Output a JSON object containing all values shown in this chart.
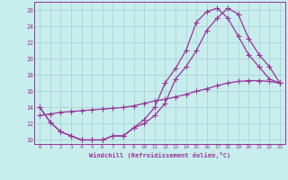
{
  "xlabel": "Windchill (Refroidissement éolien,°C)",
  "xlim": [
    -0.5,
    23.5
  ],
  "ylim": [
    9.5,
    27.0
  ],
  "xticks": [
    0,
    1,
    2,
    3,
    4,
    5,
    6,
    7,
    8,
    9,
    10,
    11,
    12,
    13,
    14,
    15,
    16,
    17,
    18,
    19,
    20,
    21,
    22,
    23
  ],
  "yticks": [
    10,
    12,
    14,
    16,
    18,
    20,
    22,
    24,
    26
  ],
  "background_color": "#c8eded",
  "grid_color": "#aad4d4",
  "line_color": "#993399",
  "line1_x": [
    0,
    1,
    2,
    3,
    4,
    5,
    6,
    7,
    8,
    9,
    10,
    11,
    12,
    13,
    14,
    15,
    16,
    17,
    18,
    19,
    20,
    21,
    22,
    23
  ],
  "line1_y": [
    14,
    12.2,
    11.0,
    10.5,
    10.0,
    10.0,
    10.0,
    10.5,
    10.5,
    11.5,
    12.0,
    13.0,
    14.5,
    17.5,
    19.0,
    21.0,
    23.5,
    25.0,
    26.2,
    25.5,
    22.5,
    20.5,
    19.0,
    17.0
  ],
  "line2_x": [
    0,
    1,
    2,
    3,
    4,
    5,
    6,
    7,
    8,
    9,
    10,
    11,
    12,
    13,
    14,
    15,
    16,
    17,
    18,
    19,
    20,
    21,
    22,
    23
  ],
  "line2_y": [
    14,
    12.2,
    11.0,
    10.5,
    10.0,
    10.0,
    10.0,
    10.5,
    10.5,
    11.5,
    12.5,
    14.0,
    17.0,
    18.8,
    21.0,
    24.5,
    25.8,
    26.2,
    25.0,
    22.8,
    20.5,
    19.0,
    17.5,
    17.0
  ],
  "line3_x": [
    0,
    1,
    2,
    3,
    4,
    5,
    6,
    7,
    8,
    9,
    10,
    11,
    12,
    13,
    14,
    15,
    16,
    17,
    18,
    19,
    20,
    21,
    22,
    23
  ],
  "line3_y": [
    13.0,
    13.2,
    13.4,
    13.5,
    13.6,
    13.7,
    13.8,
    13.9,
    14.0,
    14.2,
    14.5,
    14.8,
    15.0,
    15.3,
    15.6,
    16.0,
    16.3,
    16.7,
    17.0,
    17.2,
    17.3,
    17.3,
    17.2,
    17.0
  ],
  "marker": "+",
  "marker_size": 4,
  "linewidth": 0.9
}
